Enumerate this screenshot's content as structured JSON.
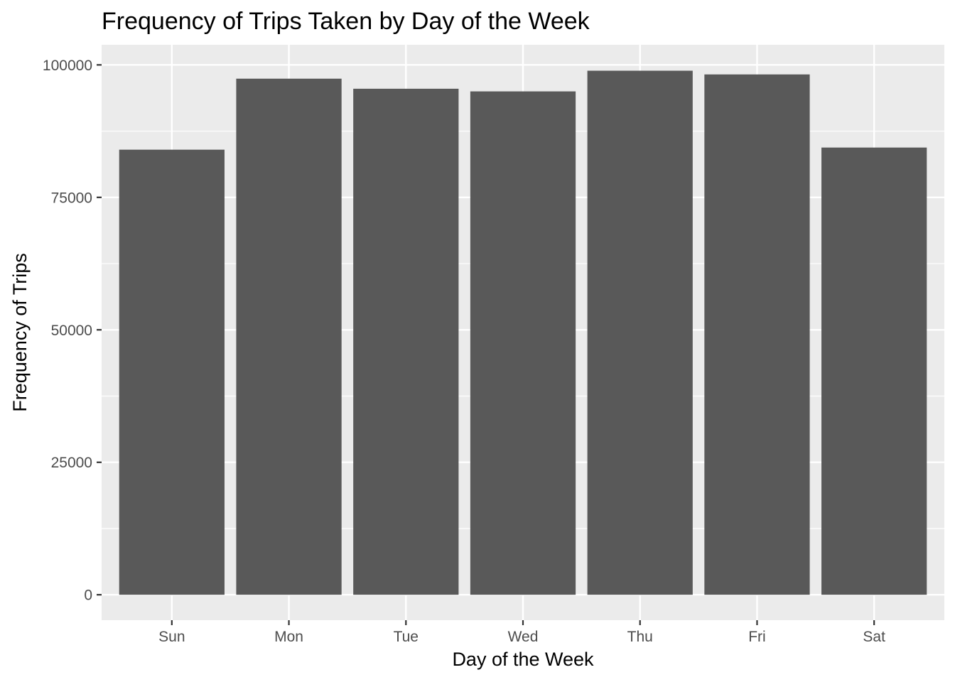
{
  "chart_data": {
    "type": "bar",
    "title": "Frequency of Trips Taken by Day of the Week",
    "xlabel": "Day of the Week",
    "ylabel": "Frequency of Trips",
    "categories": [
      "Sun",
      "Mon",
      "Tue",
      "Wed",
      "Thu",
      "Fri",
      "Sat"
    ],
    "values": [
      84000,
      97400,
      95500,
      95000,
      98900,
      98200,
      84400
    ],
    "ylim": [
      -4800,
      103800
    ],
    "yticks": [
      0,
      25000,
      50000,
      75000,
      100000
    ],
    "ytick_labels": [
      "0",
      "25000",
      "50000",
      "75000",
      "100000"
    ],
    "grid": true,
    "legend": "none",
    "colors": {
      "bar": "#595959",
      "panel": "#ebebeb",
      "grid": "#ffffff",
      "tick": "#333333"
    }
  }
}
